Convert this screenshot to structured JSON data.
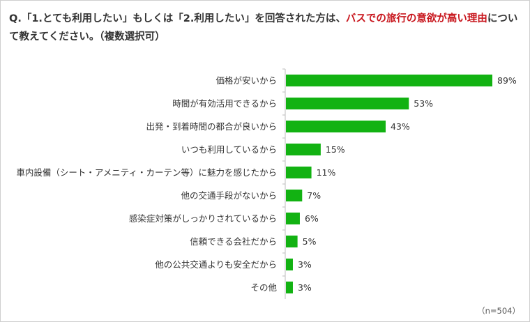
{
  "question": {
    "prefix": "Q.「1.とても利用したい」もしくは「2.利用したい」を回答された方は、",
    "highlight": "バスでの旅行の意欲が高い理由",
    "suffix": "について教えてください。（複数選択可）"
  },
  "note": "（n=504）",
  "chart_data": {
    "type": "bar",
    "orientation": "horizontal",
    "categories": [
      "価格が安いから",
      "時間が有効活用できるから",
      "出発・到着時間の都合が良いから",
      "いつも利用しているから",
      "車内設備（シート・アメニティ・カーテン等）に魅力を感じたから",
      "他の交通手段がないから",
      "感染症対策がしっかりされているから",
      "信頼できる会社だから",
      "他の公共交通よりも安全だから",
      "その他"
    ],
    "values": [
      89,
      53,
      43,
      15,
      11,
      7,
      6,
      5,
      3,
      3
    ],
    "labels": [
      "89%",
      "53%",
      "43%",
      "15%",
      "11%",
      "7%",
      "6%",
      "5%",
      "3%",
      "3%"
    ],
    "unit": "%",
    "xlim": [
      0,
      100
    ],
    "grid": false,
    "bar_color": "#12b212"
  }
}
